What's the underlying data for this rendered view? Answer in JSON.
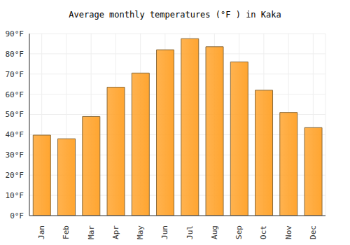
{
  "chart_data": {
    "type": "bar",
    "title": "Average monthly temperatures (°F ) in Kaka",
    "categories": [
      "Jan",
      "Feb",
      "Mar",
      "Apr",
      "May",
      "Jun",
      "Jul",
      "Aug",
      "Sep",
      "Oct",
      "Nov",
      "Dec"
    ],
    "values": [
      39.8,
      38,
      49,
      63.5,
      70.5,
      82,
      87.5,
      83.5,
      76,
      62,
      51,
      43.5
    ],
    "color": "#ffa530",
    "ylim": [
      0,
      90
    ],
    "yticks": [
      {
        "value": 0,
        "label": "0°F"
      },
      {
        "value": 10,
        "label": "10°F"
      },
      {
        "value": 20,
        "label": "20°F"
      },
      {
        "value": 30,
        "label": "30°F"
      },
      {
        "value": 40,
        "label": "40°F"
      },
      {
        "value": 50,
        "label": "50°F"
      },
      {
        "value": 60,
        "label": "60°F"
      },
      {
        "value": 70,
        "label": "70°F"
      },
      {
        "value": 80,
        "label": "80°F"
      },
      {
        "value": 90,
        "label": "90°F"
      }
    ],
    "grid": true
  }
}
